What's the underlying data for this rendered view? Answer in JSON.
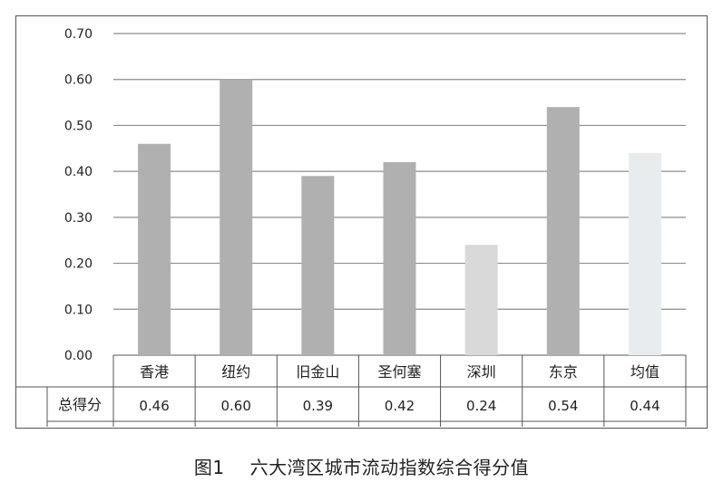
{
  "chart_data": {
    "type": "bar",
    "categories": [
      "香港",
      "纽约",
      "旧金山",
      "圣何塞",
      "深圳",
      "东京",
      "均值"
    ],
    "series": [
      {
        "name": "总得分",
        "values": [
          0.46,
          0.6,
          0.39,
          0.42,
          0.24,
          0.54,
          0.44
        ]
      }
    ],
    "data_labels": [
      "0.46",
      "0.60",
      "0.39",
      "0.42",
      "0.24",
      "0.54",
      "0.44"
    ],
    "bar_colors": [
      "#b0b0b0",
      "#b0b0b0",
      "#b0b0b0",
      "#b0b0b0",
      "#d9d9d9",
      "#b0b0b0",
      "#e9ecec"
    ],
    "y_ticks": [
      "0.00",
      "0.10",
      "0.20",
      "0.30",
      "0.40",
      "0.50",
      "0.60",
      "0.70"
    ],
    "ylim": [
      0,
      0.7
    ],
    "grid": true,
    "data_table": true,
    "title": "",
    "xlabel": "",
    "ylabel": ""
  },
  "caption": {
    "figure_number": "图1",
    "text": "六大湾区城市流动指数综合得分值"
  },
  "colors": {
    "grid": "#8c8c8c",
    "table_border": "#555555",
    "text": "#222222"
  }
}
